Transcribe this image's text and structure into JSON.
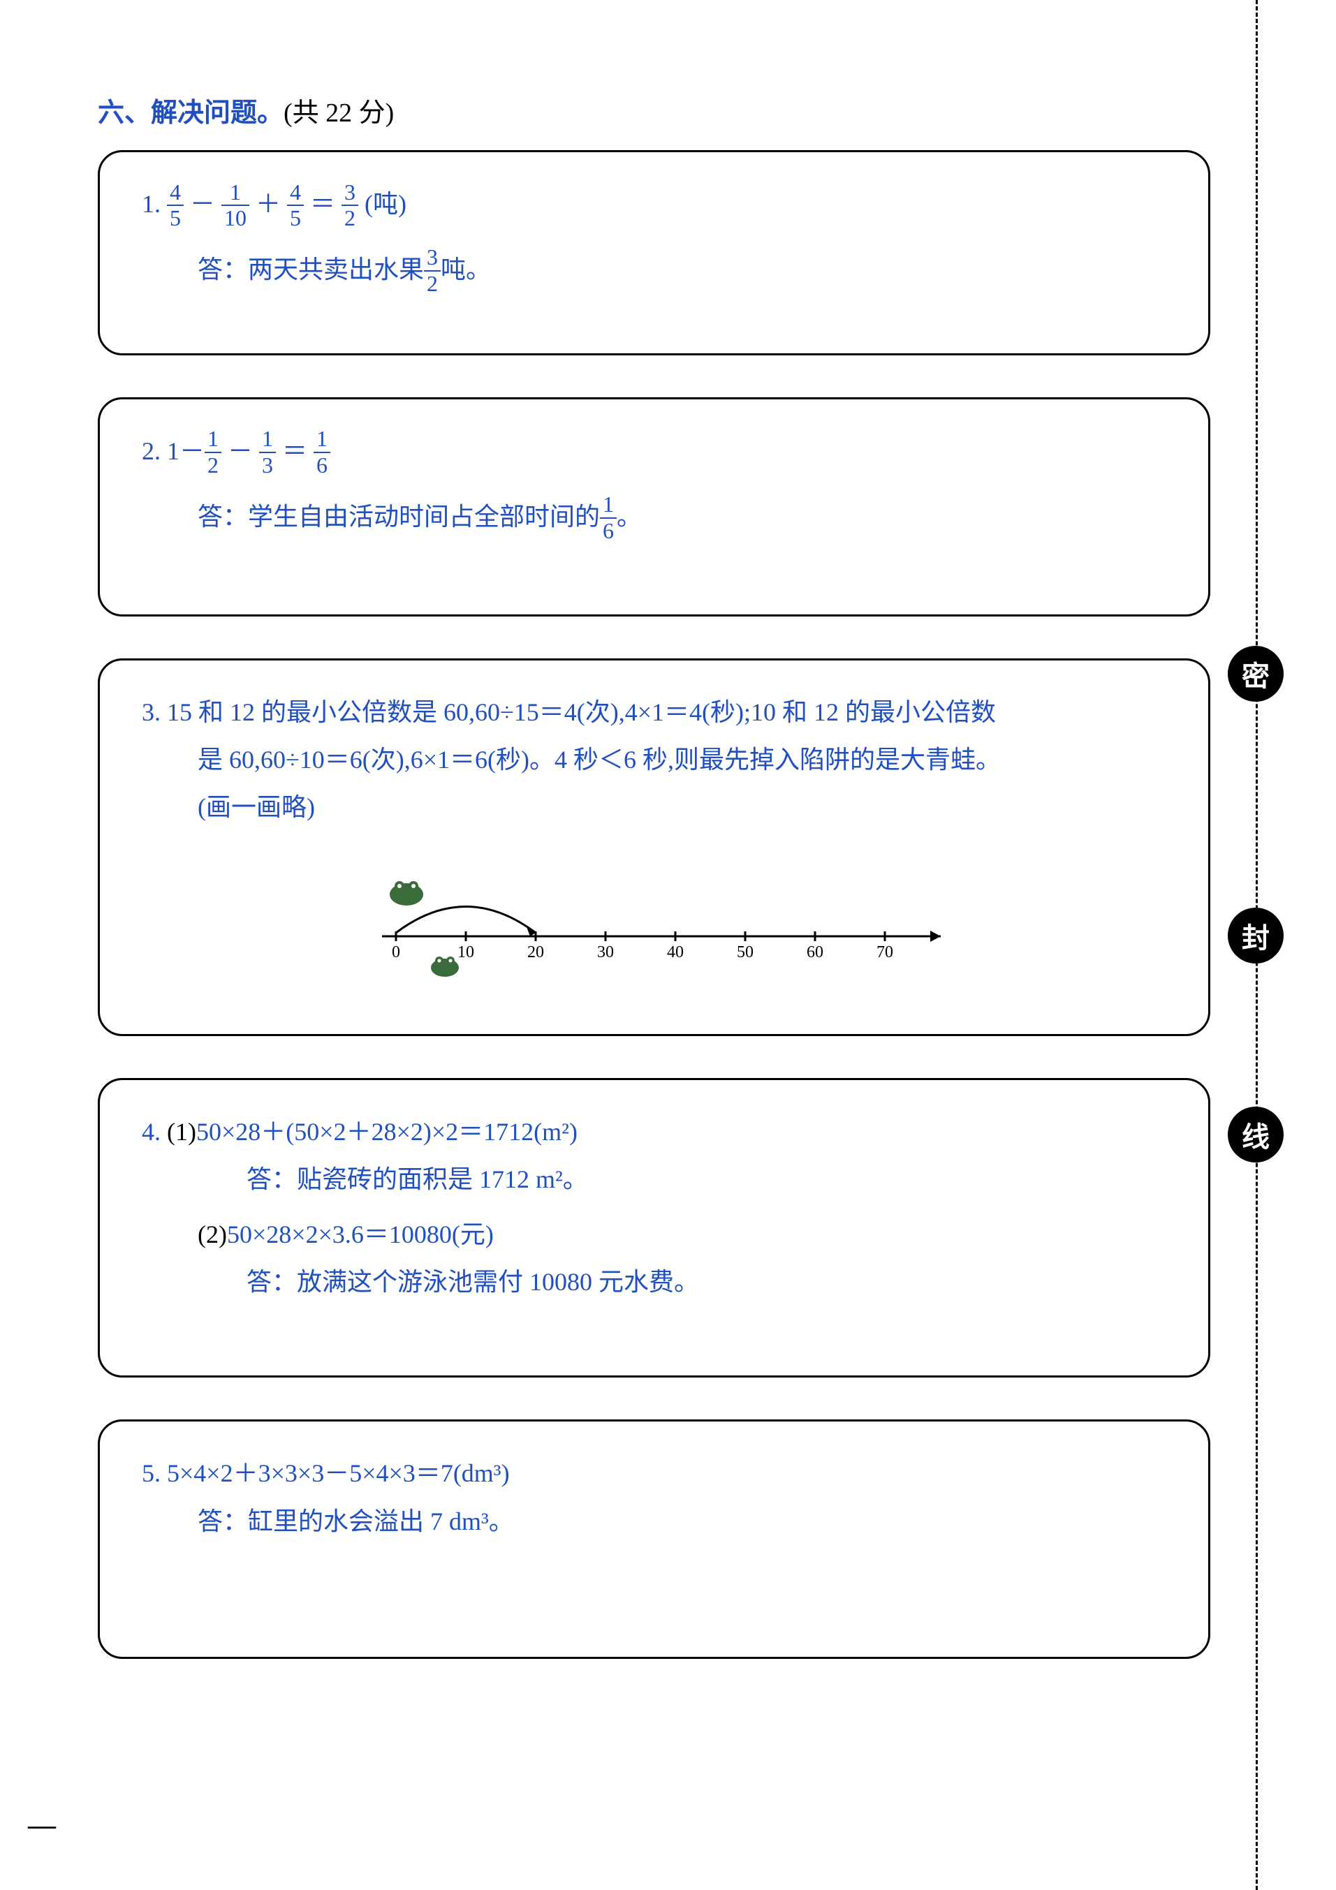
{
  "section": {
    "title_prefix": "六、解决问题。",
    "points": "(共 22 分)"
  },
  "q1": {
    "num": "1.",
    "f1n": "4",
    "f1d": "5",
    "op1": "－",
    "f2n": "1",
    "f2d": "10",
    "op2": "＋",
    "f3n": "4",
    "f3d": "5",
    "eq": "＝",
    "f4n": "3",
    "f4d": "2",
    "unit": "(吨)",
    "ans_prefix": "答：两天共卖出水果",
    "afn": "3",
    "afd": "2",
    "ans_suffix": "吨。"
  },
  "q2": {
    "num": "2.",
    "lead": "1－",
    "f1n": "1",
    "f1d": "2",
    "op1": "－",
    "f2n": "1",
    "f2d": "3",
    "eq": "＝",
    "f3n": "1",
    "f3d": "6",
    "ans_prefix": "答：学生自由活动时间占全部时间的",
    "afn": "1",
    "afd": "6",
    "ans_suffix": "。"
  },
  "q3": {
    "num": "3.",
    "line1": "15 和 12 的最小公倍数是 60,60÷15＝4(次),4×1＝4(秒);10 和 12 的最小公倍数",
    "line2": "是 60,60÷10＝6(次),6×1＝6(秒)。4 秒＜6 秒,则最先掉入陷阱的是大青蛙。",
    "line3": "(画一画略)",
    "ticks": [
      "0",
      "10",
      "20",
      "30",
      "40",
      "50",
      "60",
      "70"
    ]
  },
  "q4": {
    "num": "4.",
    "p1": "(1)",
    "p1expr": "50×28＋(50×2＋28×2)×2＝1712(m²)",
    "p1ans": "答：贴瓷砖的面积是 1712 m²。",
    "p2": "(2)",
    "p2expr": "50×28×2×3.6＝10080(元)",
    "p2ans": "答：放满这个游泳池需付 10080 元水费。"
  },
  "q5": {
    "num": "5.",
    "expr": "5×4×2＋3×3×3－5×4×3＝7(dm³)",
    "ans": "答：缸里的水会溢出 7 dm³。"
  },
  "side": {
    "b1": "密",
    "b2": "封",
    "b3": "线"
  },
  "corner": "—",
  "colors": {
    "accent": "#2050c0",
    "text": "#000000",
    "bg": "#ffffff"
  }
}
